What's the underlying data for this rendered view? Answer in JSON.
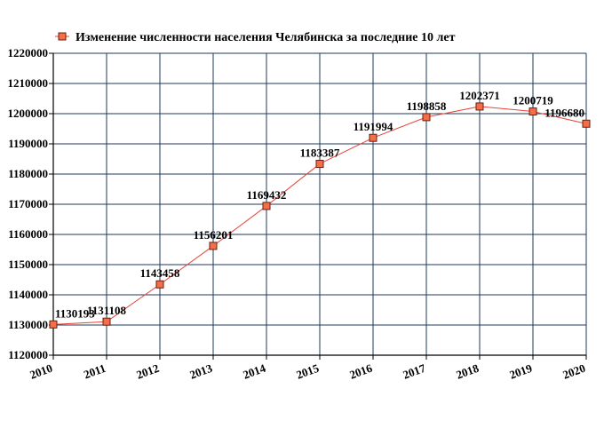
{
  "chart_data": {
    "type": "line",
    "title": "",
    "xlabel": "",
    "ylabel": "",
    "x": [
      "2010",
      "2011",
      "2012",
      "2013",
      "2014",
      "2015",
      "2016",
      "2017",
      "2018",
      "2019",
      "2020"
    ],
    "series": [
      {
        "name": "Изменение численности населения Челябинска за последние 10 лет",
        "values": [
          1130193,
          1131108,
          1143458,
          1156201,
          1169432,
          1183387,
          1191994,
          1198858,
          1202371,
          1200719,
          1196680
        ],
        "data_labels": [
          "1130193",
          "1131108",
          "1143458",
          "1156201",
          "1169432",
          "1183387",
          "1191994",
          "1198858",
          "1202371",
          "1200719",
          "1196680"
        ]
      }
    ],
    "ylim": [
      1120000,
      1220000
    ],
    "yticks": [
      "1120000",
      "1130000",
      "1140000",
      "1150000",
      "1160000",
      "1170000",
      "1180000",
      "1190000",
      "1200000",
      "1210000",
      "1220000"
    ],
    "grid": true,
    "legend_position": "top",
    "colors": {
      "line": "#e8443a",
      "marker_fill": "#f26f4a",
      "marker_stroke": "#6b1e0e",
      "grid": "#1c3a5e",
      "axis": "#000000"
    }
  }
}
